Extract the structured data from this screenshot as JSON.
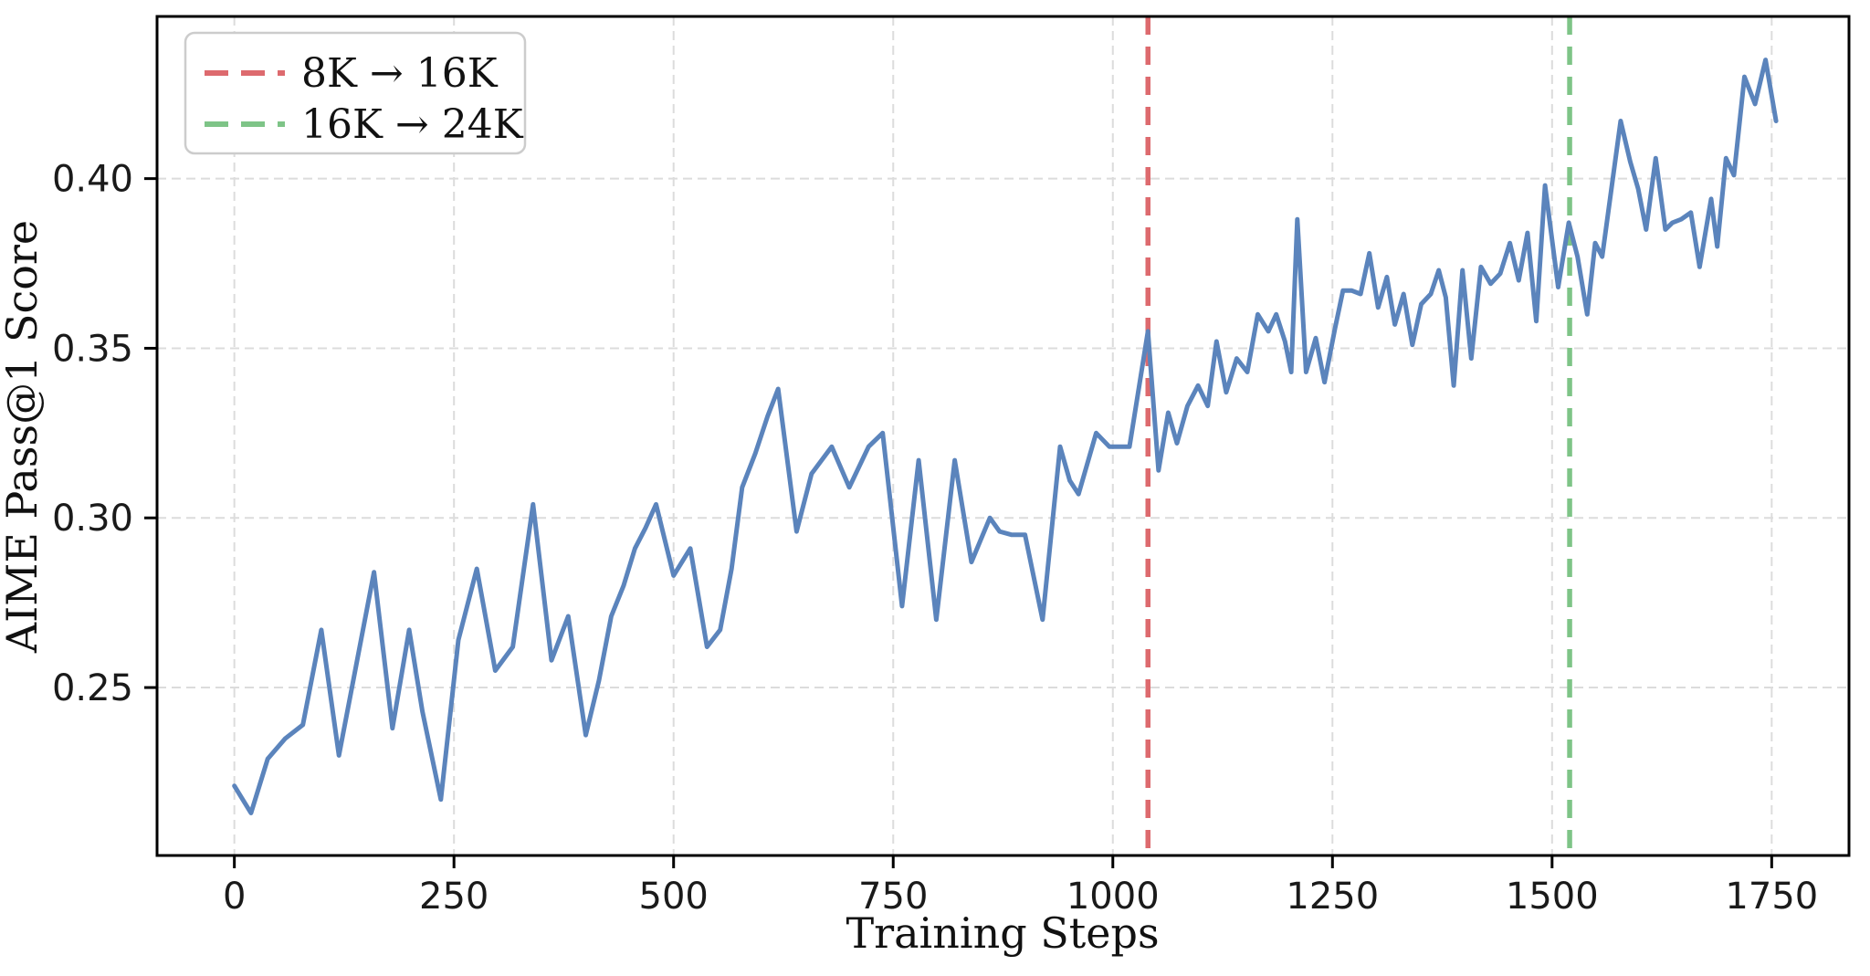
{
  "chart_data": {
    "type": "line",
    "title": "",
    "xlabel": "Training Steps",
    "ylabel": "AIME Pass@1 Score",
    "xlim": [
      -88,
      1838
    ],
    "ylim": [
      0.2005,
      0.4478
    ],
    "x_ticks": [
      0,
      250,
      500,
      750,
      1000,
      1250,
      1500,
      1750
    ],
    "x_tick_labels": [
      "0",
      "250",
      "500",
      "750",
      "1000",
      "1250",
      "1500",
      "1750"
    ],
    "y_ticks": [
      0.25,
      0.3,
      0.35,
      0.4
    ],
    "y_tick_labels": [
      "0.25",
      "0.30",
      "0.35",
      "0.40"
    ],
    "grid": true,
    "grid_color": "#dcdcdc",
    "spine_color": "#000000",
    "legend_position": "upper left",
    "series": [
      {
        "name": "AIME Pass@1 Score",
        "color": "#5b84bc",
        "x": [
          0,
          19,
          38,
          58,
          78,
          99,
          119,
          139,
          159,
          180,
          199,
          214,
          235,
          255,
          276,
          297,
          317,
          340,
          361,
          380,
          400,
          415,
          429,
          443,
          456,
          468,
          480,
          500,
          519,
          538,
          553,
          566,
          578,
          593,
          607,
          619,
          640,
          657,
          680,
          700,
          722,
          738,
          760,
          779,
          799,
          820,
          839,
          860,
          871,
          885,
          900,
          920,
          940,
          951,
          961,
          981,
          996,
          1019,
          1040,
          1052,
          1063,
          1073,
          1085,
          1097,
          1108,
          1118,
          1129,
          1141,
          1153,
          1165,
          1177,
          1186,
          1196,
          1203,
          1210,
          1220,
          1231,
          1241,
          1253,
          1262,
          1272,
          1282,
          1292,
          1302,
          1312,
          1321,
          1331,
          1341,
          1351,
          1362,
          1371,
          1379,
          1388,
          1398,
          1408,
          1419,
          1430,
          1441,
          1452,
          1462,
          1472,
          1482,
          1492,
          1507,
          1519,
          1529,
          1540,
          1549,
          1557,
          1567,
          1578,
          1589,
          1598,
          1607,
          1618,
          1629,
          1637,
          1647,
          1658,
          1668,
          1681,
          1688,
          1698,
          1707,
          1719,
          1731,
          1743,
          1755
        ],
        "y": [
          0.221,
          0.213,
          0.229,
          0.235,
          0.239,
          0.267,
          0.23,
          0.257,
          0.284,
          0.238,
          0.267,
          0.243,
          0.217,
          0.264,
          0.285,
          0.255,
          0.262,
          0.304,
          0.258,
          0.271,
          0.236,
          0.252,
          0.271,
          0.28,
          0.291,
          0.297,
          0.304,
          0.283,
          0.291,
          0.262,
          0.267,
          0.285,
          0.309,
          0.319,
          0.33,
          0.338,
          0.296,
          0.313,
          0.321,
          0.309,
          0.321,
          0.325,
          0.274,
          0.317,
          0.27,
          0.317,
          0.287,
          0.3,
          0.296,
          0.295,
          0.295,
          0.27,
          0.321,
          0.311,
          0.307,
          0.325,
          0.321,
          0.321,
          0.355,
          0.314,
          0.331,
          0.322,
          0.333,
          0.339,
          0.333,
          0.352,
          0.337,
          0.347,
          0.343,
          0.36,
          0.355,
          0.36,
          0.352,
          0.343,
          0.388,
          0.343,
          0.353,
          0.34,
          0.356,
          0.367,
          0.367,
          0.366,
          0.378,
          0.362,
          0.371,
          0.357,
          0.366,
          0.351,
          0.363,
          0.366,
          0.373,
          0.365,
          0.339,
          0.373,
          0.347,
          0.374,
          0.369,
          0.372,
          0.381,
          0.37,
          0.384,
          0.358,
          0.398,
          0.368,
          0.387,
          0.377,
          0.36,
          0.381,
          0.377,
          0.396,
          0.417,
          0.405,
          0.397,
          0.385,
          0.406,
          0.385,
          0.387,
          0.388,
          0.39,
          0.374,
          0.394,
          0.38,
          0.406,
          0.401,
          0.43,
          0.422,
          0.435,
          0.417
        ]
      }
    ],
    "vlines": [
      {
        "x": 1040,
        "label": "8K → 16K",
        "color": "#dd6a6e"
      },
      {
        "x": 1520,
        "label": "16K → 24K",
        "color": "#7ec487"
      }
    ]
  }
}
